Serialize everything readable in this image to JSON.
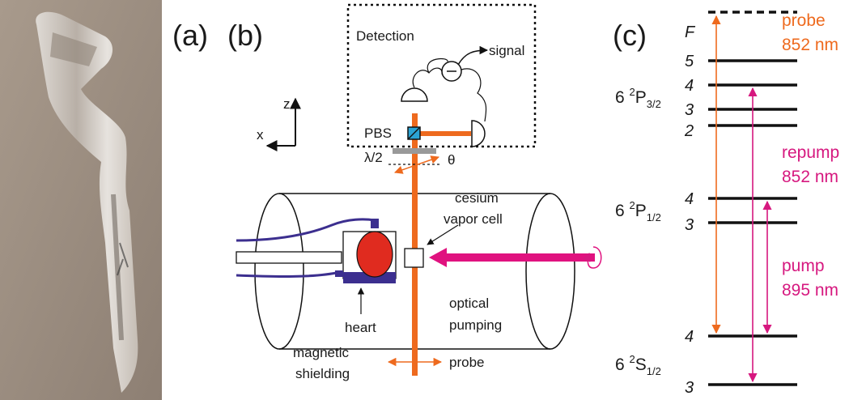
{
  "panel_a": {
    "label": "(a)"
  },
  "panel_b": {
    "label": "(b)",
    "detection": "Detection",
    "signal": "signal",
    "pbs": "PBS",
    "waveplate": "λ/2",
    "angle": "θ",
    "axis_z": "z",
    "axis_x": "x",
    "cell_label": [
      "cesium",
      "vapor cell"
    ],
    "pumping_label": [
      "optical",
      "pumping"
    ],
    "heart": "heart",
    "shielding_label": [
      "magnetic",
      "shielding"
    ],
    "probe": "probe"
  },
  "panel_c": {
    "label": "(c)",
    "f_label": "F",
    "terms": [
      {
        "n": "6 ",
        "sup": "2",
        "L": "P",
        "sub": "3/2"
      },
      {
        "n": "6 ",
        "sup": "2",
        "L": "P",
        "sub": "1/2"
      },
      {
        "n": "6 ",
        "sup": "2",
        "L": "S",
        "sub": "1/2"
      }
    ],
    "levels": [
      "5",
      "4",
      "3",
      "2",
      "4",
      "3",
      "4",
      "3"
    ],
    "transitions": [
      {
        "name": "probe",
        "wavelength": "852 nm"
      },
      {
        "name": "repump",
        "wavelength": "852 nm"
      },
      {
        "name": "pump",
        "wavelength": "895 nm"
      }
    ]
  }
}
